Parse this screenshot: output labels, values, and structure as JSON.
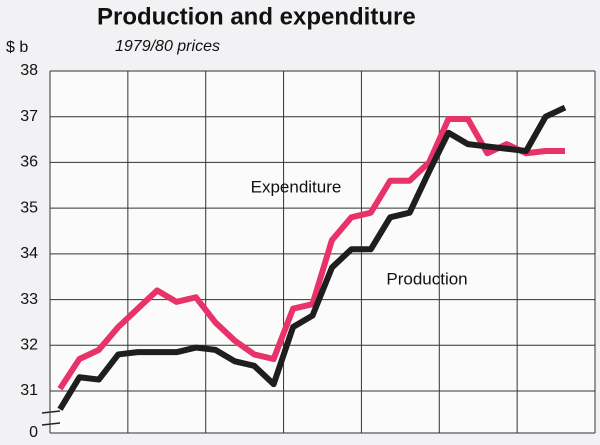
{
  "chart_data": {
    "type": "line",
    "title": "Production and expenditure",
    "subtitle": "1979/80 prices",
    "y_label": "$ b",
    "categories": [
      null,
      null,
      null,
      null,
      null,
      null,
      null,
      null,
      null,
      null,
      null,
      null,
      null,
      null,
      null,
      null,
      null,
      null,
      null,
      null,
      null,
      null,
      null,
      null,
      null,
      null,
      null
    ],
    "series": [
      {
        "name": "Expenditure",
        "color": "#e8336a",
        "values": [
          31.05,
          31.7,
          31.9,
          32.4,
          32.8,
          33.2,
          32.95,
          33.05,
          32.5,
          32.1,
          31.8,
          31.7,
          32.8,
          32.9,
          34.3,
          34.8,
          34.9,
          35.6,
          35.6,
          36.0,
          36.95,
          36.95,
          36.2,
          36.4,
          36.2,
          36.25,
          36.25
        ]
      },
      {
        "name": "Production",
        "color": "#1e1e1e",
        "values": [
          30.6,
          31.3,
          31.25,
          31.8,
          31.85,
          31.85,
          31.85,
          31.95,
          31.9,
          31.65,
          31.55,
          31.15,
          32.4,
          32.65,
          33.7,
          34.1,
          34.1,
          34.8,
          34.9,
          35.8,
          36.65,
          36.4,
          36.35,
          36.3,
          36.25,
          37.0,
          37.2
        ]
      }
    ],
    "ylim": [
      0,
      38
    ],
    "yticks": [
      0,
      31,
      32,
      33,
      34,
      35,
      36,
      37,
      38
    ],
    "axis_break": true,
    "grid": true
  }
}
